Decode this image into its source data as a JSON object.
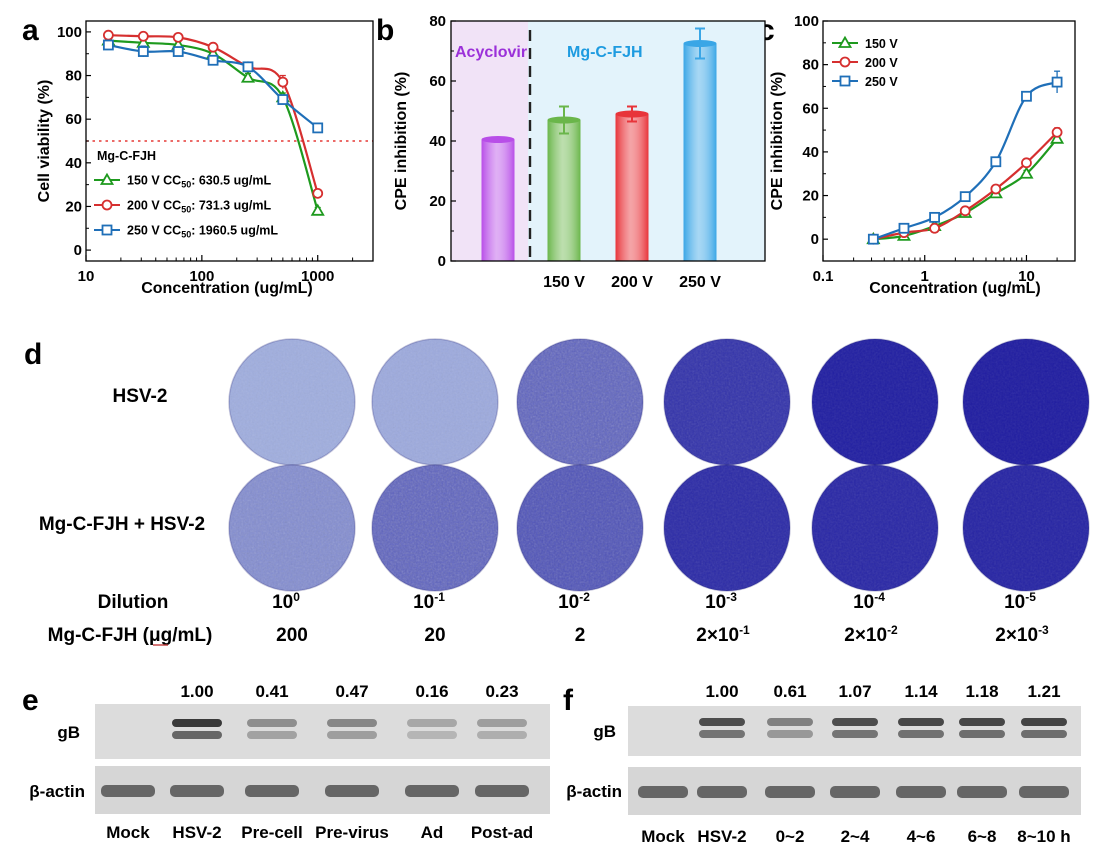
{
  "chart_data": [
    {
      "panel": "a",
      "type": "line",
      "xscale": "log",
      "xlabel": "Concentration (ug/mL)",
      "ylabel": "Cell viability (%)",
      "xlim": [
        10,
        3000
      ],
      "ylim": [
        -5,
        105
      ],
      "xticks": [
        10,
        100,
        1000
      ],
      "xtick_labels": [
        "10",
        "100",
        "1000"
      ],
      "yticks": [
        0,
        20,
        40,
        60,
        80,
        100
      ],
      "ytick_labels": [
        "0",
        "20",
        "40",
        "60",
        "80",
        "100"
      ],
      "reference_line": {
        "y": 50,
        "style": "dotted",
        "color": "#e53935"
      },
      "legend_title": "Mg-C-FJH",
      "legend_position": "bottom-left",
      "series": [
        {
          "name": "150 V",
          "legend_prefix": "150 V CC",
          "legend_sub": "50",
          "legend_suffix": ": 630.5 ug/mL",
          "color": "#1e9a1e",
          "marker": "triangle",
          "x": [
            15.6,
            31.25,
            62.5,
            125,
            250,
            500,
            1000
          ],
          "y": [
            96,
            95,
            94,
            90,
            79,
            70,
            18
          ],
          "err": [
            1.5,
            1.5,
            1.5,
            1.5,
            2,
            2,
            1.5
          ]
        },
        {
          "name": "200 V",
          "legend_prefix": "200 V CC",
          "legend_sub": "50",
          "legend_suffix": ": 731.3 ug/mL",
          "color": "#d62f2f",
          "marker": "circle",
          "x": [
            15.6,
            31.25,
            62.5,
            125,
            250,
            500,
            1000
          ],
          "y": [
            98.5,
            98,
            97.5,
            93,
            84,
            77,
            26
          ],
          "err": [
            1,
            1,
            1,
            1.5,
            2,
            3,
            1.5
          ]
        },
        {
          "name": "250 V",
          "legend_prefix": "250 V CC",
          "legend_sub": "50",
          "legend_suffix": ": 1960.5 ug/mL",
          "color": "#1f6fb8",
          "marker": "square",
          "x": [
            15.6,
            31.25,
            62.5,
            125,
            250,
            500,
            1000
          ],
          "y": [
            94,
            91,
            91,
            87,
            84,
            69,
            56
          ],
          "err": [
            2,
            2.5,
            1.5,
            2,
            1.5,
            2,
            1
          ]
        }
      ]
    },
    {
      "panel": "b",
      "type": "bar",
      "ylabel": "CPE inhibition (%)",
      "ylim": [
        0,
        80
      ],
      "yticks": [
        0,
        20,
        40,
        60,
        80
      ],
      "ytick_labels": [
        "0",
        "20",
        "40",
        "60",
        "80"
      ],
      "group_labels": [
        "Acyclovir",
        "Mg-C-FJH"
      ],
      "group_label_colors": [
        "#9b30d9",
        "#1e9be0"
      ],
      "group_bg_colors": [
        "#f1e3f7",
        "#e3f3fb"
      ],
      "categories": [
        "",
        "150 V",
        "200 V",
        "250 V"
      ],
      "values": [
        40.5,
        47,
        49,
        72.5
      ],
      "errors": [
        0.5,
        4.5,
        2.5,
        5
      ],
      "bar_colors": [
        "#b84ee8",
        "#6ab64a",
        "#e8343a",
        "#3aa6e6"
      ]
    },
    {
      "panel": "c",
      "type": "line",
      "xscale": "log",
      "xlabel": "Concentration (ug/mL)",
      "ylabel": "CPE inhibition (%)",
      "xlim": [
        0.1,
        30
      ],
      "ylim": [
        -10,
        100
      ],
      "xticks": [
        0.1,
        1,
        10
      ],
      "xtick_labels": [
        "0.1",
        "1",
        "10"
      ],
      "yticks": [
        0,
        20,
        40,
        60,
        80,
        100
      ],
      "ytick_labels": [
        "0",
        "20",
        "40",
        "60",
        "80",
        "100"
      ],
      "legend_position": "top-left",
      "series": [
        {
          "name": "150 V",
          "color": "#1e9a1e",
          "marker": "triangle",
          "x": [
            0.3125,
            0.625,
            1.25,
            2.5,
            5,
            10,
            20
          ],
          "y": [
            0,
            1.5,
            6,
            12,
            21,
            30,
            46
          ],
          "err": [
            1,
            1,
            1,
            1,
            1,
            1.5,
            2
          ]
        },
        {
          "name": "200 V",
          "color": "#d62f2f",
          "marker": "circle",
          "x": [
            0.3125,
            0.625,
            1.25,
            2.5,
            5,
            10,
            20
          ],
          "y": [
            0,
            3,
            5,
            13,
            23,
            35,
            49
          ],
          "err": [
            1,
            1,
            1,
            1,
            1,
            1,
            2
          ]
        },
        {
          "name": "250 V",
          "color": "#1f6fb8",
          "marker": "square",
          "x": [
            0.3125,
            0.625,
            1.25,
            2.5,
            5,
            10,
            20
          ],
          "y": [
            0,
            5,
            10,
            19.5,
            35.5,
            65.5,
            72
          ],
          "err": [
            1,
            1,
            1,
            1,
            1,
            2,
            5
          ]
        }
      ]
    },
    {
      "panel": "d",
      "type": "table",
      "row_labels": [
        "HSV-2",
        "Mg-C-FJH + HSV-2"
      ],
      "footer_label_dilution": "Dilution",
      "footer_label_conc": "Mg-C-FJH (μg/mL)",
      "dilution": [
        {
          "base": "10",
          "exp": "0"
        },
        {
          "base": "10",
          "exp": "-1"
        },
        {
          "base": "10",
          "exp": "-2"
        },
        {
          "base": "10",
          "exp": "-3"
        },
        {
          "base": "10",
          "exp": "-4"
        },
        {
          "base": "10",
          "exp": "-5"
        }
      ],
      "concentration": [
        {
          "base": "200",
          "exp": ""
        },
        {
          "base": "20",
          "exp": ""
        },
        {
          "base": "2",
          "exp": ""
        },
        {
          "base": "2×10",
          "exp": "-1"
        },
        {
          "base": "2×10",
          "exp": "-2"
        },
        {
          "base": "2×10",
          "exp": "-3"
        }
      ],
      "plate_darkness_row1": [
        0.1,
        0.12,
        0.55,
        0.85,
        0.97,
        0.98
      ],
      "plate_darkness_row2": [
        0.3,
        0.55,
        0.65,
        0.9,
        0.92,
        0.94
      ]
    },
    {
      "panel": "e",
      "type": "table",
      "row_labels": [
        "gB",
        "β-actin"
      ],
      "lanes": [
        "Mock",
        "HSV-2",
        "Pre-cell",
        "Pre-virus",
        "Ad",
        "Post-ad"
      ],
      "values": [
        "",
        "1.00",
        "0.41",
        "0.47",
        "0.16",
        "0.23"
      ],
      "band_intensity": [
        0,
        1,
        0.35,
        0.4,
        0.15,
        0.22
      ]
    },
    {
      "panel": "f",
      "type": "table",
      "row_labels": [
        "gB",
        "β-actin"
      ],
      "lanes": [
        "Mock",
        "HSV-2",
        "0~2",
        "2~4",
        "4~6",
        "6~8",
        "8~10 h"
      ],
      "values": [
        "",
        "1.00",
        "0.61",
        "1.07",
        "1.14",
        "1.18",
        "1.21"
      ],
      "band_intensity": [
        0,
        0.85,
        0.45,
        0.85,
        0.88,
        0.9,
        0.92
      ]
    }
  ],
  "panel_letters": [
    "a",
    "b",
    "c",
    "d",
    "e",
    "f"
  ]
}
